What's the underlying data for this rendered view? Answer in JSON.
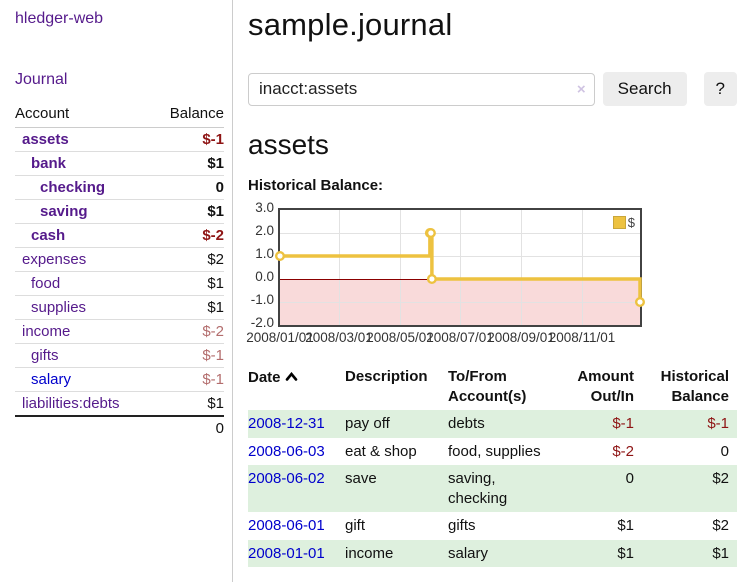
{
  "app": {
    "title": "hledger-web",
    "nav_journal": "Journal"
  },
  "sidebar": {
    "header": {
      "account": "Account",
      "balance": "Balance"
    },
    "accounts": [
      {
        "name": "assets",
        "balance": "$-1"
      },
      {
        "name": "bank",
        "balance": "$1"
      },
      {
        "name": "checking",
        "balance": "0"
      },
      {
        "name": "saving",
        "balance": "$1"
      },
      {
        "name": "cash",
        "balance": "$-2"
      },
      {
        "name": "expenses",
        "balance": "$2"
      },
      {
        "name": "food",
        "balance": "$1"
      },
      {
        "name": "supplies",
        "balance": "$1"
      },
      {
        "name": "income",
        "balance": "$-2"
      },
      {
        "name": "gifts",
        "balance": "$-1"
      },
      {
        "name": "salary",
        "balance": "$-1"
      },
      {
        "name": "liabilities:debts",
        "balance": "$1"
      }
    ],
    "total": "0"
  },
  "main": {
    "journal_title": "sample.journal",
    "search": {
      "value": "inacct:assets",
      "clear_label": "×",
      "search_button": "Search",
      "help_button": "?"
    },
    "account_heading": "assets",
    "section_label": "Historical Balance:"
  },
  "chart_data": {
    "type": "line",
    "step": true,
    "title": "Historical Balance",
    "series": [
      {
        "name": "$",
        "color": "#edc240",
        "points": [
          [
            "2008-01-01",
            1
          ],
          [
            "2008-06-01",
            2
          ],
          [
            "2008-06-02",
            2
          ],
          [
            "2008-06-03",
            0
          ],
          [
            "2008-12-31",
            -1
          ]
        ]
      }
    ],
    "xlim": [
      "2008-01-01",
      "2008-12-31"
    ],
    "ylim": [
      -2,
      3
    ],
    "x_ticks": [
      "2008/01/01",
      "2008/03/01",
      "2008/05/01",
      "2008/07/01",
      "2008/09/01",
      "2008/11/01"
    ],
    "y_ticks": [
      "3.0",
      "2.0",
      "1.0",
      "0.0",
      "-1.0",
      "-2.0"
    ],
    "legend": {
      "label": "$",
      "swatch_color": "#edc240",
      "position": "top-right"
    },
    "negative_region_color": "#f9dada",
    "zero_line_color": "#8b0000",
    "grid": true
  },
  "register": {
    "headers": {
      "date": "Date",
      "description": "Description",
      "tofrom_1": "To/From",
      "tofrom_2": "Account(s)",
      "amount_1": "Amount",
      "amount_2": "Out/In",
      "balance_1": "Historical",
      "balance_2": "Balance"
    },
    "rows": [
      {
        "date": "2008-12-31",
        "description": "pay off",
        "accounts": "debts",
        "amount": "$-1",
        "balance": "$-1"
      },
      {
        "date": "2008-06-03",
        "description": "eat & shop",
        "accounts": "food, supplies",
        "amount": "$-2",
        "balance": "0"
      },
      {
        "date": "2008-06-02",
        "description": "save",
        "accounts": "saving, checking",
        "amount": "0",
        "balance": "$2"
      },
      {
        "date": "2008-06-01",
        "description": "gift",
        "accounts": "gifts",
        "amount": "$1",
        "balance": "$2"
      },
      {
        "date": "2008-01-01",
        "description": "income",
        "accounts": "salary",
        "amount": "$1",
        "balance": "$1"
      }
    ]
  },
  "colors": {
    "link_purple": "#551a8b",
    "link_blue": "#0000cc",
    "negative_strong": "#8e1414",
    "negative_soft": "#b36d6d",
    "row_stripe_green": "#def0de",
    "chart_line_gold": "#edc240"
  }
}
